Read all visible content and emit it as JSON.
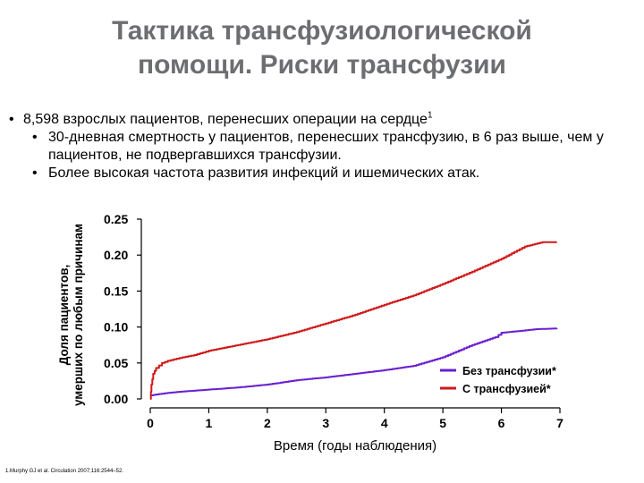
{
  "slide": {
    "title_line1": "Тактика трансфузиологической",
    "title_line2": "помощи.  Риски трансфузии",
    "bullet_main": "8,598 взрослых пациентов, перенесших операции на сердце",
    "bullet_main_sup": "1",
    "sub_bullets": [
      "30-дневная смертность у пациентов, перенесших трансфузию, в 6 раз выше, чем у пациентов, не подвергавшихся трансфузии.",
      "Более высокая частота развития инфекций и ишемических атак."
    ],
    "footnote": "1.Murphy GJ et al. Circulation 2007;116:2544–52."
  },
  "chart_data": {
    "type": "line",
    "title": "",
    "xlabel": "Время (годы наблюдения)",
    "ylabel_line1": "Доля пациентов,",
    "ylabel_line2": "умерших по любым причинам",
    "xlim": [
      0,
      7
    ],
    "ylim": [
      0,
      0.25
    ],
    "x_ticks": [
      "0",
      "1",
      "2",
      "3",
      "4",
      "5",
      "6",
      "7"
    ],
    "y_ticks": [
      "0.00",
      "0.05",
      "0.10",
      "0.15",
      "0.20",
      "0.25"
    ],
    "grid": false,
    "legend_position": "bottom-right",
    "series": [
      {
        "name": "Без трансфузии*",
        "color": "#6a1fd0",
        "points": [
          [
            0,
            0.005
          ],
          [
            0.25,
            0.008
          ],
          [
            0.5,
            0.01
          ],
          [
            1,
            0.013
          ],
          [
            1.5,
            0.016
          ],
          [
            2,
            0.02
          ],
          [
            2.5,
            0.026
          ],
          [
            3,
            0.03
          ],
          [
            3.5,
            0.035
          ],
          [
            4,
            0.04
          ],
          [
            4.5,
            0.046
          ],
          [
            5,
            0.058
          ],
          [
            5.5,
            0.075
          ],
          [
            5.9,
            0.086
          ],
          [
            6,
            0.092
          ],
          [
            6.6,
            0.097
          ],
          [
            6.95,
            0.098
          ]
        ]
      },
      {
        "name": "С трансфузией*",
        "color": "#d01818",
        "points": [
          [
            0,
            0
          ],
          [
            0.02,
            0.02
          ],
          [
            0.05,
            0.035
          ],
          [
            0.1,
            0.043
          ],
          [
            0.2,
            0.05
          ],
          [
            0.3,
            0.053
          ],
          [
            0.5,
            0.057
          ],
          [
            0.75,
            0.061
          ],
          [
            1,
            0.067
          ],
          [
            1.5,
            0.075
          ],
          [
            2,
            0.083
          ],
          [
            2.5,
            0.093
          ],
          [
            3,
            0.105
          ],
          [
            3.5,
            0.117
          ],
          [
            4,
            0.131
          ],
          [
            4.5,
            0.144
          ],
          [
            5,
            0.16
          ],
          [
            5.5,
            0.177
          ],
          [
            6,
            0.195
          ],
          [
            6.4,
            0.212
          ],
          [
            6.7,
            0.218
          ],
          [
            6.95,
            0.218
          ]
        ]
      }
    ]
  }
}
